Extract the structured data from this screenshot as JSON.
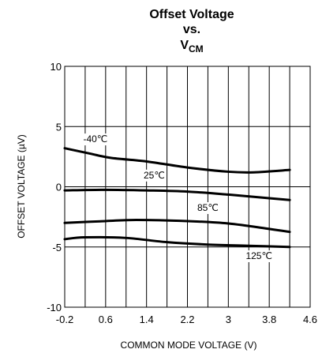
{
  "chart_data": {
    "type": "line",
    "title_lines": [
      "Offset Voltage",
      "vs."
    ],
    "title_v": "V",
    "title_sub": "CM",
    "xlabel": "COMMON MODE VOLTAGE (V)",
    "ylabel": "OFFSET VOLTAGE (µV)",
    "xlim": [
      -0.2,
      4.6
    ],
    "ylim": [
      -10,
      10
    ],
    "x_ticks": [
      -0.2,
      0.6,
      1.4,
      2.2,
      3.0,
      3.8,
      4.6
    ],
    "x_tick_labels": [
      "-0.2",
      "0.6",
      "1.4",
      "2.2",
      "3",
      "3.8",
      "4.6"
    ],
    "x_minor_grid": [
      0.2,
      1.0,
      1.8,
      2.6,
      3.4,
      4.2
    ],
    "y_ticks": [
      10,
      5,
      0,
      -5,
      -10
    ],
    "y_tick_labels": [
      "10",
      "5",
      "0",
      "-5",
      "-10"
    ],
    "grid": true,
    "series": [
      {
        "name": "-40℃",
        "label_x": 0.4,
        "label_y": 3.7,
        "x": [
          -0.2,
          0.3,
          0.7,
          1.4,
          2.2,
          3.0,
          3.5,
          4.2
        ],
        "y": [
          3.2,
          2.75,
          2.4,
          2.1,
          1.6,
          1.25,
          1.2,
          1.4
        ]
      },
      {
        "name": "25℃",
        "label_x": 1.55,
        "label_y": 0.7,
        "x": [
          -0.2,
          0.6,
          1.4,
          2.2,
          3.0,
          3.8,
          4.2
        ],
        "y": [
          -0.3,
          -0.25,
          -0.3,
          -0.4,
          -0.65,
          -0.95,
          -1.1
        ]
      },
      {
        "name": "85℃",
        "label_x": 2.6,
        "label_y": -2.0,
        "x": [
          -0.2,
          0.6,
          1.2,
          2.2,
          3.0,
          3.8,
          4.2
        ],
        "y": [
          -3.0,
          -2.85,
          -2.75,
          -2.85,
          -3.05,
          -3.5,
          -3.75
        ]
      },
      {
        "name": "125℃",
        "label_x": 3.6,
        "label_y": -6.0,
        "x": [
          -0.2,
          0.2,
          1.0,
          1.8,
          2.6,
          3.4,
          4.2
        ],
        "y": [
          -4.35,
          -4.2,
          -4.25,
          -4.6,
          -4.8,
          -4.9,
          -5.0
        ]
      }
    ]
  }
}
